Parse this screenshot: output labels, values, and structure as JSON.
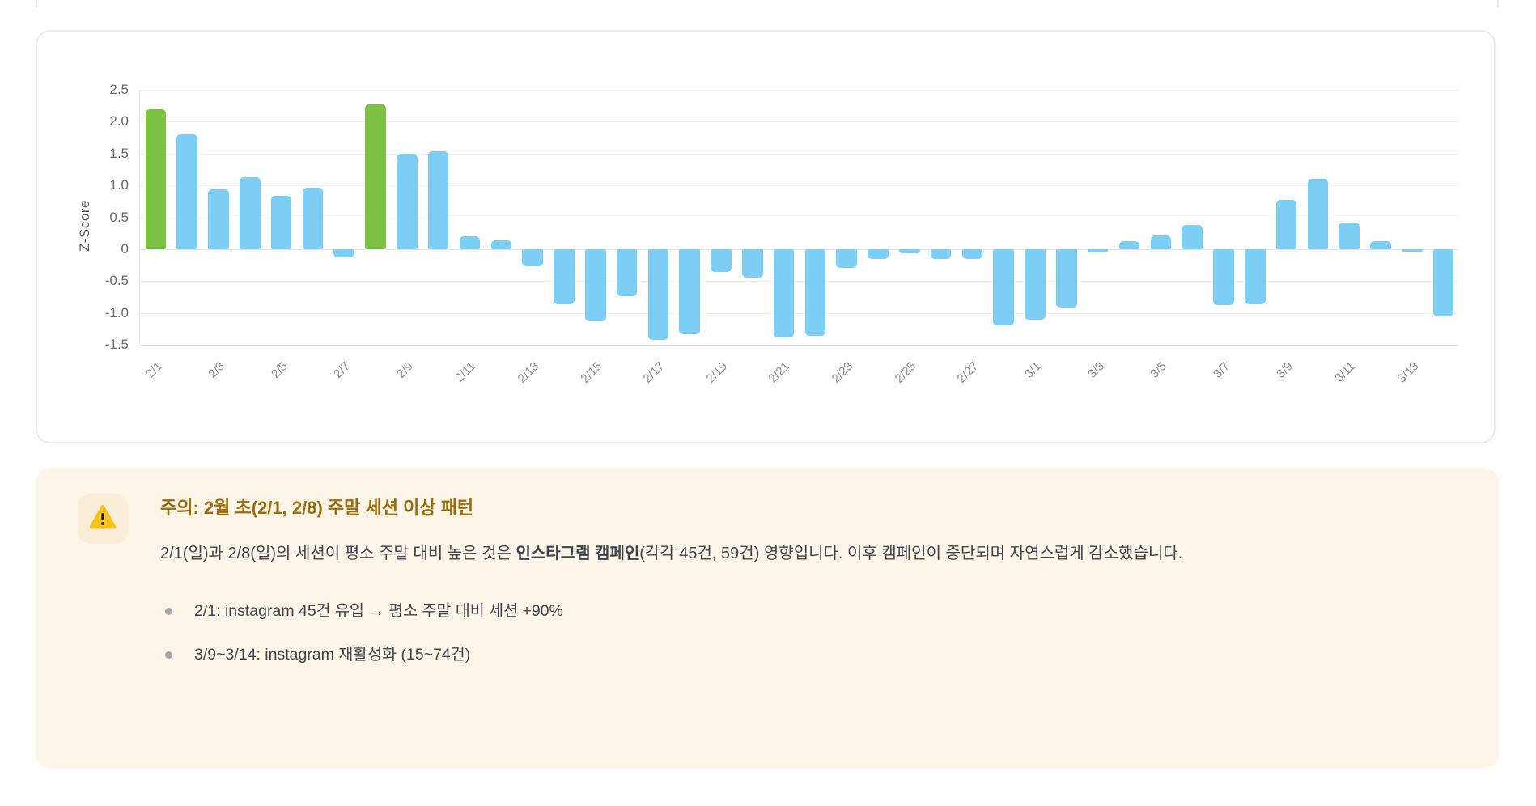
{
  "chart_data": {
    "type": "bar",
    "title": "",
    "xlabel": "",
    "ylabel": "Z-Score",
    "ylim": [
      -1.5,
      2.5
    ],
    "yticks": [
      2.5,
      2.0,
      1.5,
      1.0,
      0.5,
      0,
      -0.5,
      -1.0,
      -1.5
    ],
    "grid": true,
    "legend": "none",
    "x_tick_every": 2,
    "bar_color": "#7dcef4",
    "highlight_color": "#7cc142",
    "highlight_indices": [
      0,
      7
    ],
    "categories": [
      "2/1",
      "2/2",
      "2/3",
      "2/4",
      "2/5",
      "2/6",
      "2/7",
      "2/8",
      "2/9",
      "2/10",
      "2/11",
      "2/12",
      "2/13",
      "2/14",
      "2/15",
      "2/16",
      "2/17",
      "2/18",
      "2/19",
      "2/20",
      "2/21",
      "2/22",
      "2/23",
      "2/24",
      "2/25",
      "2/26",
      "2/27",
      "2/28",
      "3/1",
      "3/2",
      "3/3",
      "3/4",
      "3/5",
      "3/6",
      "3/7",
      "3/8",
      "3/9",
      "3/10",
      "3/11",
      "3/12",
      "3/13",
      "3/14"
    ],
    "values": [
      2.2,
      1.8,
      0.94,
      1.13,
      0.84,
      0.96,
      -0.13,
      2.27,
      1.5,
      1.54,
      0.2,
      0.14,
      -0.27,
      -0.87,
      -1.13,
      -0.74,
      -1.42,
      -1.33,
      -0.36,
      -0.45,
      -1.38,
      -1.36,
      -0.29,
      -0.16,
      -0.07,
      -0.15,
      -0.16,
      -1.2,
      -1.1,
      -0.92,
      -0.05,
      0.13,
      0.22,
      0.38,
      -0.88,
      -0.87,
      0.77,
      1.1,
      0.42,
      0.12,
      -0.04,
      -1.06
    ]
  },
  "warning": {
    "icon": "warning-triangle",
    "icon_color": "#f6c31c",
    "title": "주의: 2월 초(2/1, 2/8) 주말 세션 이상 패턴",
    "title_color": "#9c6a0a",
    "body_prefix": "2/1(일)과 2/8(일)의 세션이 평소 주말 대비 높은 것은 ",
    "body_bold": "인스타그램 캠페인",
    "body_suffix": "(각각 45건, 59건) 영향입니다. 이후 캠페인이 중단되며 자연스럽게 감소했습니다.",
    "bullets": [
      "2/1: instagram 45건 유입 → 평소 주말 대비 세션 +90%",
      "3/9~3/14: instagram 재활성화 (15~74건)"
    ],
    "background": "#fdf5e8"
  }
}
